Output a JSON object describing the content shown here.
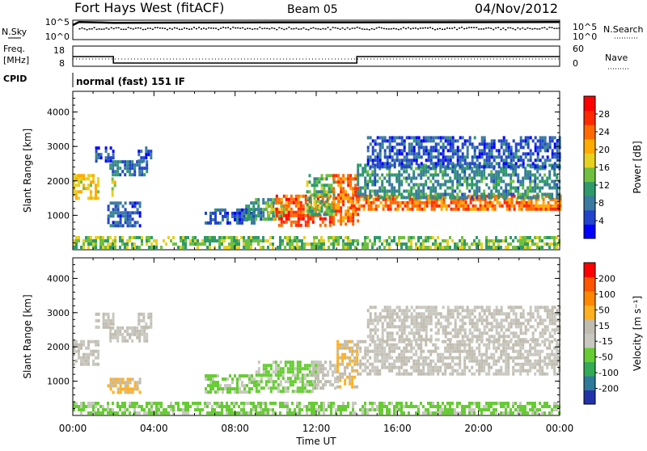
{
  "header": {
    "radar": "Fort Hays West (fitACF)",
    "beam": "Beam 05",
    "date": "04/Nov/2012"
  },
  "strip_nsky": {
    "left_label": "N.Sky",
    "right_label": "N.Search",
    "ticks_left": [
      "10^5",
      "10^0"
    ],
    "ticks_right": [
      "10^5",
      "10^0"
    ]
  },
  "strip_freq": {
    "left_label_line1": "Freq.",
    "left_label_line2": "[MHz]",
    "ticks_left": [
      "18",
      "8"
    ],
    "ticks_right": [
      "60",
      "0"
    ],
    "right_label": "Nave"
  },
  "strip_cpid": {
    "left_label": "CPID",
    "text": "normal (fast) 151 IF"
  },
  "xaxis": {
    "label": "Time UT",
    "ticks": [
      "00:00",
      "04:00",
      "08:00",
      "12:00",
      "16:00",
      "20:00",
      "00:00"
    ]
  },
  "colors": {
    "power_scale": [
      "#0000ff",
      "#2244cc",
      "#3a7aa0",
      "#2e9a6a",
      "#70c040",
      "#e8d020",
      "#ffaa00",
      "#ff6a00",
      "#ff2a00",
      "#ff0000"
    ],
    "velocity_scale": [
      "#2233aa",
      "#2e7a9a",
      "#33aa55",
      "#66cc33",
      "#c8c8c0",
      "#c0bcb0",
      "#ffb020",
      "#ff8800",
      "#ff5500",
      "#ff0000"
    ]
  },
  "chart_data": [
    {
      "type": "heatmap",
      "title": "Power",
      "xlabel": "Time UT",
      "ylabel": "Slant Range [km]",
      "xlim": [
        "00:00",
        "24:00"
      ],
      "ylim": [
        0,
        4600
      ],
      "yticks": [
        "1000",
        "2000",
        "3000",
        "4000"
      ],
      "colorbar": {
        "label": "Power [dB]",
        "ticks": [
          "4",
          "8",
          "12",
          "16",
          "20",
          "24",
          "28"
        ],
        "range": [
          0,
          32
        ]
      },
      "features": [
        {
          "time": [
            0.0,
            1.2
          ],
          "range": [
            1500,
            2200
          ],
          "level": 18
        },
        {
          "time": [
            1.1,
            2.0
          ],
          "range": [
            2600,
            3000
          ],
          "level": 6
        },
        {
          "time": [
            1.8,
            3.6
          ],
          "range": [
            2200,
            2600
          ],
          "level": 8
        },
        {
          "time": [
            1.9,
            2.1
          ],
          "range": [
            1600,
            2100
          ],
          "level": 16
        },
        {
          "time": [
            1.7,
            3.3
          ],
          "range": [
            700,
            1400
          ],
          "level": 6
        },
        {
          "time": [
            3.2,
            3.8
          ],
          "range": [
            2600,
            3000
          ],
          "level": 6
        },
        {
          "time": [
            6.5,
            9.0
          ],
          "range": [
            800,
            1200
          ],
          "level": 6
        },
        {
          "time": [
            8.5,
            10.0
          ],
          "range": [
            900,
            1500
          ],
          "level": 10
        },
        {
          "time": [
            9.5,
            10.6
          ],
          "range": [
            900,
            1400
          ],
          "level": 16
        },
        {
          "time": [
            10.0,
            12.8
          ],
          "range": [
            700,
            1600
          ],
          "level": 26
        },
        {
          "time": [
            11.5,
            12.9
          ],
          "range": [
            1000,
            2200
          ],
          "level": 13
        },
        {
          "time": [
            12.8,
            14.0
          ],
          "range": [
            700,
            2200
          ],
          "level": 24
        },
        {
          "time": [
            13.7,
            24.0
          ],
          "range": [
            1200,
            1600
          ],
          "level": 24
        },
        {
          "time": [
            14.0,
            24.0
          ],
          "range": [
            1500,
            2500
          ],
          "level": 10
        },
        {
          "time": [
            14.5,
            24.0
          ],
          "range": [
            2400,
            3300
          ],
          "level": 6
        },
        {
          "time": [
            0.0,
            24.0
          ],
          "range": [
            100,
            400
          ],
          "level": 14
        }
      ]
    },
    {
      "type": "heatmap",
      "title": "Velocity",
      "xlabel": "Time UT",
      "ylabel": "Slant Range [km]",
      "xlim": [
        "00:00",
        "24:00"
      ],
      "ylim": [
        0,
        4600
      ],
      "yticks": [
        "1000",
        "2000",
        "3000",
        "4000"
      ],
      "colorbar": {
        "label": "Velocity [m s⁻¹]",
        "ticks": [
          "200",
          "100",
          "50",
          "15",
          "-15",
          "-50",
          "-100",
          "-200"
        ],
        "range": [
          -250,
          250
        ]
      },
      "features": [
        {
          "time": [
            0.0,
            1.2
          ],
          "range": [
            1500,
            2200
          ],
          "level": 0
        },
        {
          "time": [
            1.1,
            2.0
          ],
          "range": [
            2600,
            3000
          ],
          "level": 0
        },
        {
          "time": [
            1.8,
            3.6
          ],
          "range": [
            2200,
            2600
          ],
          "level": 0
        },
        {
          "time": [
            1.7,
            3.3
          ],
          "range": [
            700,
            1100
          ],
          "level": 50
        },
        {
          "time": [
            3.2,
            3.8
          ],
          "range": [
            2600,
            3000
          ],
          "level": 0
        },
        {
          "time": [
            6.5,
            9.0
          ],
          "range": [
            700,
            1200
          ],
          "level": -60
        },
        {
          "time": [
            9.0,
            12.0
          ],
          "range": [
            700,
            1600
          ],
          "level": -60
        },
        {
          "time": [
            11.8,
            13.0
          ],
          "range": [
            800,
            1600
          ],
          "level": 0
        },
        {
          "time": [
            13.0,
            14.0
          ],
          "range": [
            800,
            2200
          ],
          "level": 50
        },
        {
          "time": [
            14.0,
            24.0
          ],
          "range": [
            1200,
            2200
          ],
          "level": 0
        },
        {
          "time": [
            14.5,
            24.0
          ],
          "range": [
            2200,
            3200
          ],
          "level": 0
        },
        {
          "time": [
            0.0,
            24.0
          ],
          "range": [
            100,
            400
          ],
          "level": -60
        }
      ]
    },
    {
      "type": "line",
      "title": "N.Sky / N.Search",
      "x_hours": [
        0,
        0.3,
        2.0,
        6.0,
        10.0,
        14.0,
        18.0,
        22.0,
        24.0
      ],
      "series": [
        {
          "name": "N.Sky",
          "values": [
            10000,
            90000,
            50000,
            60000,
            70000,
            70000,
            75000,
            80000,
            85000
          ]
        }
      ]
    },
    {
      "type": "line",
      "title": "Freq. / Nave",
      "x_hours": [
        0,
        2.0,
        2.0,
        14.0,
        14.0,
        24.0
      ],
      "series": [
        {
          "name": "Freq. [MHz]",
          "values": [
            14,
            14,
            10,
            10,
            14,
            14
          ]
        },
        {
          "name": "Nave",
          "values": [
            14,
            14,
            14,
            14,
            14,
            14
          ]
        }
      ]
    }
  ]
}
